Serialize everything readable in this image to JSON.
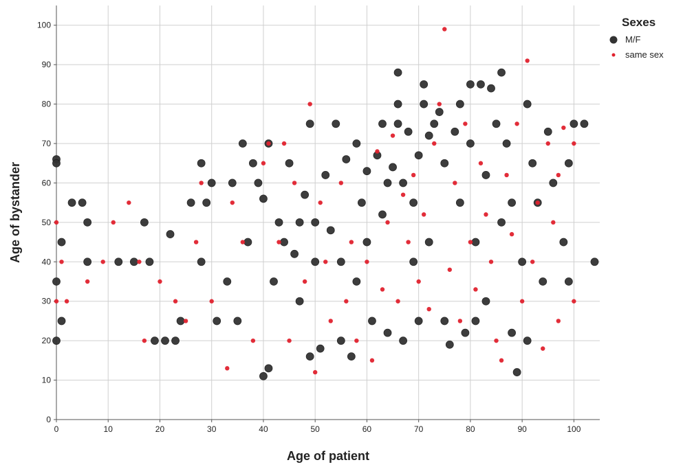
{
  "chart_data": {
    "type": "scatter",
    "title": "",
    "xlabel": "Age of patient",
    "ylabel": "Age of bystander",
    "xlim": [
      0,
      105
    ],
    "ylim": [
      0,
      105
    ],
    "xticks": [
      0,
      10,
      20,
      30,
      40,
      50,
      60,
      70,
      80,
      90,
      100
    ],
    "yticks": [
      0,
      10,
      20,
      30,
      40,
      50,
      60,
      70,
      80,
      90,
      100
    ],
    "grid": true,
    "legend": {
      "title": "Sexes",
      "placement": "right"
    },
    "series": [
      {
        "name": "M/F",
        "color": "#333333",
        "marker": "large-circle",
        "points": [
          [
            0,
            66
          ],
          [
            0,
            65
          ],
          [
            0,
            35
          ],
          [
            0,
            20
          ],
          [
            1,
            45
          ],
          [
            1,
            25
          ],
          [
            3,
            55
          ],
          [
            5,
            55
          ],
          [
            6,
            50
          ],
          [
            6,
            40
          ],
          [
            12,
            40
          ],
          [
            15,
            40
          ],
          [
            17,
            50
          ],
          [
            18,
            40
          ],
          [
            19,
            20
          ],
          [
            21,
            20
          ],
          [
            22,
            47
          ],
          [
            23,
            20
          ],
          [
            24,
            25
          ],
          [
            26,
            55
          ],
          [
            28,
            40
          ],
          [
            28,
            65
          ],
          [
            29,
            55
          ],
          [
            30,
            60
          ],
          [
            31,
            25
          ],
          [
            33,
            35
          ],
          [
            34,
            60
          ],
          [
            35,
            25
          ],
          [
            36,
            70
          ],
          [
            37,
            45
          ],
          [
            38,
            65
          ],
          [
            39,
            60
          ],
          [
            40,
            11
          ],
          [
            40,
            56
          ],
          [
            41,
            70
          ],
          [
            41,
            13
          ],
          [
            42,
            35
          ],
          [
            43,
            50
          ],
          [
            44,
            45
          ],
          [
            45,
            65
          ],
          [
            46,
            42
          ],
          [
            47,
            50
          ],
          [
            47,
            30
          ],
          [
            48,
            57
          ],
          [
            49,
            75
          ],
          [
            49,
            16
          ],
          [
            50,
            40
          ],
          [
            50,
            50
          ],
          [
            51,
            18
          ],
          [
            52,
            62
          ],
          [
            53,
            48
          ],
          [
            54,
            75
          ],
          [
            55,
            40
          ],
          [
            55,
            20
          ],
          [
            56,
            66
          ],
          [
            57,
            16
          ],
          [
            58,
            70
          ],
          [
            58,
            35
          ],
          [
            59,
            55
          ],
          [
            60,
            63
          ],
          [
            60,
            45
          ],
          [
            61,
            25
          ],
          [
            62,
            67
          ],
          [
            63,
            75
          ],
          [
            63,
            52
          ],
          [
            64,
            60
          ],
          [
            64,
            22
          ],
          [
            65,
            64
          ],
          [
            66,
            88
          ],
          [
            66,
            80
          ],
          [
            66,
            75
          ],
          [
            67,
            60
          ],
          [
            67,
            20
          ],
          [
            68,
            73
          ],
          [
            69,
            55
          ],
          [
            69,
            40
          ],
          [
            70,
            67
          ],
          [
            70,
            25
          ],
          [
            71,
            85
          ],
          [
            71,
            80
          ],
          [
            72,
            72
          ],
          [
            72,
            45
          ],
          [
            73,
            75
          ],
          [
            74,
            78
          ],
          [
            75,
            65
          ],
          [
            75,
            25
          ],
          [
            76,
            19
          ],
          [
            77,
            73
          ],
          [
            78,
            80
          ],
          [
            78,
            55
          ],
          [
            79,
            22
          ],
          [
            80,
            85
          ],
          [
            80,
            70
          ],
          [
            81,
            45
          ],
          [
            81,
            25
          ],
          [
            82,
            85
          ],
          [
            83,
            62
          ],
          [
            83,
            30
          ],
          [
            84,
            84
          ],
          [
            85,
            75
          ],
          [
            86,
            88
          ],
          [
            86,
            50
          ],
          [
            87,
            70
          ],
          [
            88,
            55
          ],
          [
            88,
            22
          ],
          [
            89,
            12
          ],
          [
            90,
            40
          ],
          [
            91,
            80
          ],
          [
            91,
            20
          ],
          [
            92,
            65
          ],
          [
            93,
            55
          ],
          [
            94,
            35
          ],
          [
            95,
            73
          ],
          [
            96,
            60
          ],
          [
            98,
            45
          ],
          [
            99,
            35
          ],
          [
            99,
            65
          ],
          [
            100,
            75
          ],
          [
            102,
            75
          ],
          [
            104,
            40
          ]
        ]
      },
      {
        "name": "same sex",
        "color": "#e0222e",
        "marker": "small-dot",
        "points": [
          [
            0,
            50
          ],
          [
            0,
            30
          ],
          [
            1,
            40
          ],
          [
            2,
            30
          ],
          [
            6,
            35
          ],
          [
            9,
            40
          ],
          [
            11,
            50
          ],
          [
            14,
            55
          ],
          [
            16,
            40
          ],
          [
            17,
            20
          ],
          [
            20,
            35
          ],
          [
            23,
            30
          ],
          [
            25,
            25
          ],
          [
            27,
            45
          ],
          [
            28,
            60
          ],
          [
            30,
            30
          ],
          [
            33,
            13
          ],
          [
            34,
            55
          ],
          [
            36,
            45
          ],
          [
            38,
            20
          ],
          [
            40,
            65
          ],
          [
            41,
            70
          ],
          [
            43,
            45
          ],
          [
            44,
            70
          ],
          [
            45,
            20
          ],
          [
            46,
            60
          ],
          [
            48,
            35
          ],
          [
            49,
            80
          ],
          [
            50,
            12
          ],
          [
            51,
            55
          ],
          [
            52,
            40
          ],
          [
            53,
            25
          ],
          [
            55,
            60
          ],
          [
            56,
            30
          ],
          [
            57,
            45
          ],
          [
            58,
            20
          ],
          [
            60,
            40
          ],
          [
            61,
            15
          ],
          [
            62,
            68
          ],
          [
            63,
            33
          ],
          [
            64,
            50
          ],
          [
            65,
            72
          ],
          [
            66,
            30
          ],
          [
            67,
            57
          ],
          [
            68,
            45
          ],
          [
            69,
            62
          ],
          [
            70,
            35
          ],
          [
            71,
            52
          ],
          [
            72,
            28
          ],
          [
            73,
            70
          ],
          [
            74,
            80
          ],
          [
            75,
            99
          ],
          [
            76,
            38
          ],
          [
            77,
            60
          ],
          [
            78,
            25
          ],
          [
            79,
            75
          ],
          [
            80,
            45
          ],
          [
            81,
            33
          ],
          [
            82,
            65
          ],
          [
            83,
            52
          ],
          [
            84,
            40
          ],
          [
            85,
            20
          ],
          [
            86,
            15
          ],
          [
            87,
            62
          ],
          [
            88,
            47
          ],
          [
            89,
            75
          ],
          [
            90,
            30
          ],
          [
            91,
            91
          ],
          [
            92,
            40
          ],
          [
            93,
            55
          ],
          [
            94,
            18
          ],
          [
            95,
            70
          ],
          [
            96,
            50
          ],
          [
            97,
            25
          ],
          [
            97,
            62
          ],
          [
            98,
            74
          ],
          [
            100,
            30
          ],
          [
            100,
            70
          ]
        ]
      }
    ]
  }
}
